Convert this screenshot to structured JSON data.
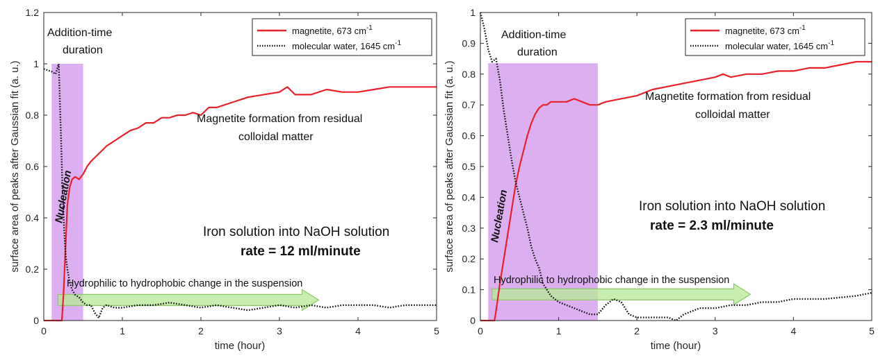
{
  "chart_data": [
    {
      "type": "line",
      "xlabel": "time (hour)",
      "ylabel": "surface area of peaks after Gaussian fit (a. u.)",
      "xlim": [
        0,
        5
      ],
      "ylim": [
        0,
        1.2
      ],
      "xticks": [
        "0",
        "1",
        "2",
        "3",
        "4",
        "5"
      ],
      "yticks": [
        "0",
        "0.2",
        "0.4",
        "0.6",
        "0.8",
        "1",
        "1.2"
      ],
      "legend": {
        "position": "top-right",
        "entries": [
          {
            "label": "magnetite, 673 cm",
            "sup": "-1"
          },
          {
            "label": "molecular water, 1645 cm",
            "sup": "-1"
          }
        ]
      },
      "series": [
        {
          "name": "magnetite, 673 cm-1",
          "color": "#e8202a",
          "style": "solid",
          "x": [
            0,
            0.23,
            0.25,
            0.3,
            0.33,
            0.36,
            0.4,
            0.45,
            0.5,
            0.55,
            0.6,
            0.7,
            0.8,
            0.9,
            1.0,
            1.1,
            1.2,
            1.3,
            1.4,
            1.5,
            1.6,
            1.7,
            1.8,
            1.9,
            2.0,
            2.1,
            2.2,
            2.4,
            2.6,
            2.8,
            3.0,
            3.1,
            3.2,
            3.4,
            3.6,
            3.8,
            4.0,
            4.2,
            4.4,
            4.6,
            4.8,
            5.0
          ],
          "y": [
            0,
            0,
            0.1,
            0.45,
            0.52,
            0.55,
            0.56,
            0.55,
            0.57,
            0.6,
            0.62,
            0.65,
            0.68,
            0.7,
            0.72,
            0.74,
            0.75,
            0.77,
            0.77,
            0.79,
            0.79,
            0.8,
            0.8,
            0.81,
            0.8,
            0.83,
            0.83,
            0.85,
            0.87,
            0.88,
            0.89,
            0.91,
            0.88,
            0.88,
            0.9,
            0.89,
            0.89,
            0.9,
            0.91,
            0.91,
            0.91,
            0.91
          ]
        },
        {
          "name": "molecular water, 1645 cm-1",
          "color": "#111111",
          "style": "dotted",
          "x": [
            0,
            0.1,
            0.15,
            0.19,
            0.22,
            0.24,
            0.26,
            0.28,
            0.3,
            0.33,
            0.36,
            0.4,
            0.45,
            0.5,
            0.55,
            0.6,
            0.65,
            0.7,
            0.75,
            0.8,
            0.9,
            1.0,
            1.2,
            1.4,
            1.6,
            1.8,
            2.0,
            2.2,
            2.4,
            2.6,
            2.8,
            3.0,
            3.2,
            3.4,
            3.6,
            3.8,
            4.0,
            4.2,
            4.4,
            4.6,
            4.8,
            5.0
          ],
          "y": [
            0.98,
            0.97,
            0.96,
            1.0,
            0.7,
            0.5,
            0.35,
            0.25,
            0.2,
            0.15,
            0.12,
            0.1,
            0.09,
            0.07,
            0.06,
            0.06,
            0.03,
            0.01,
            0.05,
            0.06,
            0.05,
            0.05,
            0.06,
            0.06,
            0.07,
            0.06,
            0.05,
            0.06,
            0.05,
            0.04,
            0.05,
            0.06,
            0.05,
            0.06,
            0.05,
            0.06,
            0.06,
            0.06,
            0.05,
            0.06,
            0.06,
            0.06
          ]
        }
      ],
      "shaded_region": {
        "x": [
          0.1,
          0.5
        ],
        "y": [
          0,
          1.0
        ],
        "color": "#c77fe6",
        "label_line1": "Addition-time",
        "label_line2": "duration"
      },
      "annotations": {
        "nucleation": "Nucleation",
        "formation_line1": "Magnetite formation from residual",
        "formation_line2": "colloidal matter",
        "solution": "Iron solution into NaOH solution",
        "rate": "rate = 12 ml/minute",
        "arrow_text": "Hydrophilic to hydrophobic change in the suspension",
        "arrow_x": [
          0.18,
          3.5
        ],
        "arrow_y": 0.08
      }
    },
    {
      "type": "line",
      "xlabel": "time (hour)",
      "ylabel": "surface area of peaks after Gaussian fit (a. u.)",
      "xlim": [
        0,
        5
      ],
      "ylim": [
        0,
        1
      ],
      "xticks": [
        "0",
        "1",
        "2",
        "3",
        "4",
        "5"
      ],
      "yticks": [
        "0",
        "0.1",
        "0.2",
        "0.3",
        "0.4",
        "0.5",
        "0.6",
        "0.7",
        "0.8",
        "0.9",
        "1"
      ],
      "legend": {
        "position": "top-right",
        "entries": [
          {
            "label": "magnetite, 673 cm",
            "sup": "-1"
          },
          {
            "label": "molecular water, 1645 cm",
            "sup": "-1"
          }
        ]
      },
      "series": [
        {
          "name": "magnetite, 673 cm-1",
          "color": "#e8202a",
          "style": "solid",
          "x": [
            0,
            0.18,
            0.2,
            0.25,
            0.3,
            0.35,
            0.4,
            0.45,
            0.5,
            0.55,
            0.6,
            0.65,
            0.7,
            0.75,
            0.8,
            0.85,
            0.9,
            1.0,
            1.1,
            1.2,
            1.3,
            1.4,
            1.5,
            1.6,
            1.8,
            2.0,
            2.2,
            2.4,
            2.6,
            2.8,
            3.0,
            3.1,
            3.2,
            3.4,
            3.6,
            3.8,
            4.0,
            4.2,
            4.4,
            4.6,
            4.8,
            5.0
          ],
          "y": [
            0,
            0,
            0.03,
            0.12,
            0.2,
            0.28,
            0.36,
            0.44,
            0.5,
            0.55,
            0.6,
            0.64,
            0.67,
            0.69,
            0.7,
            0.7,
            0.71,
            0.71,
            0.71,
            0.72,
            0.71,
            0.7,
            0.7,
            0.71,
            0.72,
            0.73,
            0.75,
            0.76,
            0.77,
            0.78,
            0.79,
            0.8,
            0.79,
            0.8,
            0.8,
            0.81,
            0.81,
            0.82,
            0.82,
            0.83,
            0.84,
            0.84
          ]
        },
        {
          "name": "molecular water, 1645 cm-1",
          "color": "#111111",
          "style": "dotted",
          "x": [
            0,
            0.05,
            0.1,
            0.15,
            0.2,
            0.25,
            0.3,
            0.35,
            0.4,
            0.45,
            0.5,
            0.55,
            0.6,
            0.65,
            0.7,
            0.75,
            0.8,
            0.9,
            1.0,
            1.1,
            1.2,
            1.3,
            1.4,
            1.5,
            1.6,
            1.7,
            1.8,
            1.9,
            2.0,
            2.2,
            2.4,
            2.5,
            2.6,
            2.8,
            3.0,
            3.2,
            3.4,
            3.6,
            3.8,
            4.0,
            4.4,
            4.8,
            5.0
          ],
          "y": [
            1.0,
            0.95,
            0.88,
            0.84,
            0.85,
            0.78,
            0.68,
            0.6,
            0.52,
            0.45,
            0.4,
            0.35,
            0.3,
            0.24,
            0.2,
            0.17,
            0.12,
            0.08,
            0.06,
            0.05,
            0.04,
            0.03,
            0.02,
            0.02,
            0.05,
            0.07,
            0.06,
            0.02,
            0.01,
            0.01,
            0.01,
            0.0,
            0.02,
            0.04,
            0.04,
            0.05,
            0.05,
            0.06,
            0.06,
            0.07,
            0.07,
            0.08,
            0.09
          ]
        }
      ],
      "shaded_region": {
        "x": [
          0.1,
          1.5
        ],
        "y": [
          0,
          0.835
        ],
        "color": "#c77fe6",
        "label_line1": "Addition-time",
        "label_line2": "duration"
      },
      "annotations": {
        "nucleation": "Nucleation",
        "formation_line1": "Magnetite formation from residual",
        "formation_line2": "colloidal matter",
        "solution": "Iron solution into NaOH solution",
        "rate": "rate = 2.3 ml/minute",
        "arrow_text": "Hydrophilic to hydrophobic change in the suspension",
        "arrow_x": [
          0.15,
          3.45
        ],
        "arrow_y": 0.085
      }
    }
  ]
}
